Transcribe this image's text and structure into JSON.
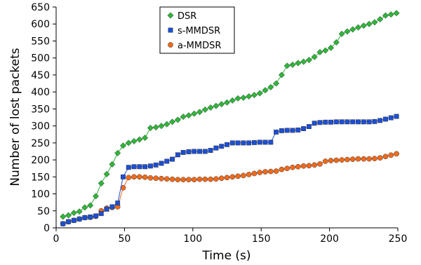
{
  "chart_data": {
    "type": "line",
    "xlabel": "Time (s)",
    "ylabel": "Number of lost packets",
    "xlim": [
      0,
      250
    ],
    "ylim": [
      0,
      650
    ],
    "xticks": [
      0,
      50,
      100,
      150,
      200,
      250
    ],
    "yticks": [
      0,
      50,
      100,
      150,
      200,
      250,
      300,
      350,
      400,
      450,
      500,
      550,
      600,
      650
    ],
    "grid": false,
    "legend_position": "top-center",
    "series": [
      {
        "name": "DSR",
        "color": "#2fb53a",
        "marker": "diamond",
        "points": [
          [
            5,
            33
          ],
          [
            9,
            37
          ],
          [
            13,
            44
          ],
          [
            17,
            48
          ],
          [
            21,
            60
          ],
          [
            25,
            66
          ],
          [
            29,
            93
          ],
          [
            33,
            131
          ],
          [
            37,
            158
          ],
          [
            41,
            187
          ],
          [
            45,
            220
          ],
          [
            49,
            242
          ],
          [
            53,
            250
          ],
          [
            57,
            255
          ],
          [
            61,
            260
          ],
          [
            65,
            265
          ],
          [
            69,
            294
          ],
          [
            73,
            296
          ],
          [
            77,
            300
          ],
          [
            81,
            305
          ],
          [
            85,
            312
          ],
          [
            89,
            318
          ],
          [
            93,
            327
          ],
          [
            97,
            331
          ],
          [
            101,
            336
          ],
          [
            105,
            341
          ],
          [
            109,
            348
          ],
          [
            113,
            354
          ],
          [
            117,
            359
          ],
          [
            121,
            364
          ],
          [
            125,
            369
          ],
          [
            129,
            375
          ],
          [
            133,
            381
          ],
          [
            137,
            383
          ],
          [
            141,
            387
          ],
          [
            145,
            391
          ],
          [
            149,
            396
          ],
          [
            153,
            405
          ],
          [
            157,
            414
          ],
          [
            161,
            425
          ],
          [
            165,
            450
          ],
          [
            169,
            477
          ],
          [
            173,
            480
          ],
          [
            177,
            485
          ],
          [
            181,
            489
          ],
          [
            185,
            494
          ],
          [
            189,
            503
          ],
          [
            193,
            517
          ],
          [
            197,
            522
          ],
          [
            201,
            530
          ],
          [
            205,
            546
          ],
          [
            209,
            571
          ],
          [
            213,
            578
          ],
          [
            217,
            584
          ],
          [
            221,
            590
          ],
          [
            225,
            595
          ],
          [
            229,
            600
          ],
          [
            233,
            605
          ],
          [
            237,
            614
          ],
          [
            241,
            625
          ],
          [
            245,
            628
          ],
          [
            249,
            632
          ]
        ]
      },
      {
        "name": "s-MMDSR",
        "color": "#1c4fd6",
        "marker": "square",
        "points": [
          [
            5,
            12
          ],
          [
            9,
            18
          ],
          [
            13,
            22
          ],
          [
            17,
            26
          ],
          [
            21,
            30
          ],
          [
            25,
            32
          ],
          [
            29,
            35
          ],
          [
            33,
            42
          ],
          [
            37,
            55
          ],
          [
            41,
            62
          ],
          [
            45,
            73
          ],
          [
            49,
            150
          ],
          [
            53,
            178
          ],
          [
            57,
            180
          ],
          [
            61,
            180
          ],
          [
            65,
            180
          ],
          [
            69,
            182
          ],
          [
            73,
            185
          ],
          [
            77,
            190
          ],
          [
            81,
            196
          ],
          [
            85,
            202
          ],
          [
            89,
            215
          ],
          [
            93,
            222
          ],
          [
            97,
            224
          ],
          [
            101,
            225
          ],
          [
            105,
            225
          ],
          [
            109,
            225
          ],
          [
            113,
            228
          ],
          [
            117,
            235
          ],
          [
            121,
            240
          ],
          [
            125,
            245
          ],
          [
            129,
            250
          ],
          [
            133,
            250
          ],
          [
            137,
            250
          ],
          [
            141,
            250
          ],
          [
            145,
            251
          ],
          [
            149,
            252
          ],
          [
            153,
            252
          ],
          [
            157,
            252
          ],
          [
            161,
            282
          ],
          [
            165,
            286
          ],
          [
            169,
            287
          ],
          [
            173,
            287
          ],
          [
            177,
            288
          ],
          [
            181,
            292
          ],
          [
            185,
            298
          ],
          [
            189,
            308
          ],
          [
            193,
            310
          ],
          [
            197,
            311
          ],
          [
            201,
            311
          ],
          [
            205,
            312
          ],
          [
            209,
            312
          ],
          [
            213,
            312
          ],
          [
            217,
            312
          ],
          [
            221,
            312
          ],
          [
            225,
            312
          ],
          [
            229,
            312
          ],
          [
            233,
            313
          ],
          [
            237,
            316
          ],
          [
            241,
            320
          ],
          [
            245,
            324
          ],
          [
            249,
            328
          ]
        ]
      },
      {
        "name": "a-MMDSR",
        "color": "#f26a1b",
        "marker": "circle",
        "points": [
          [
            5,
            12
          ],
          [
            9,
            18
          ],
          [
            13,
            22
          ],
          [
            17,
            26
          ],
          [
            21,
            30
          ],
          [
            25,
            31
          ],
          [
            29,
            34
          ],
          [
            33,
            50
          ],
          [
            37,
            58
          ],
          [
            41,
            60
          ],
          [
            45,
            62
          ],
          [
            49,
            118
          ],
          [
            53,
            148
          ],
          [
            57,
            150
          ],
          [
            61,
            150
          ],
          [
            65,
            149
          ],
          [
            69,
            147
          ],
          [
            73,
            146
          ],
          [
            77,
            145
          ],
          [
            81,
            144
          ],
          [
            85,
            143
          ],
          [
            89,
            142
          ],
          [
            93,
            142
          ],
          [
            97,
            142
          ],
          [
            101,
            142
          ],
          [
            105,
            143
          ],
          [
            109,
            143
          ],
          [
            113,
            143
          ],
          [
            117,
            144
          ],
          [
            121,
            146
          ],
          [
            125,
            148
          ],
          [
            129,
            150
          ],
          [
            133,
            152
          ],
          [
            137,
            154
          ],
          [
            141,
            157
          ],
          [
            145,
            160
          ],
          [
            149,
            163
          ],
          [
            153,
            165
          ],
          [
            157,
            166
          ],
          [
            161,
            167
          ],
          [
            165,
            172
          ],
          [
            169,
            175
          ],
          [
            173,
            178
          ],
          [
            177,
            180
          ],
          [
            181,
            182
          ],
          [
            185,
            183
          ],
          [
            189,
            185
          ],
          [
            193,
            188
          ],
          [
            197,
            196
          ],
          [
            201,
            198
          ],
          [
            205,
            199
          ],
          [
            209,
            200
          ],
          [
            213,
            201
          ],
          [
            217,
            202
          ],
          [
            221,
            203
          ],
          [
            225,
            203
          ],
          [
            229,
            203
          ],
          [
            233,
            204
          ],
          [
            237,
            206
          ],
          [
            241,
            210
          ],
          [
            245,
            214
          ],
          [
            249,
            218
          ]
        ]
      }
    ]
  }
}
